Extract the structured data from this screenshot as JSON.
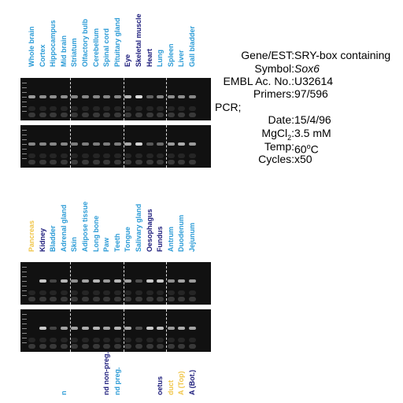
{
  "colors": {
    "cyan": "#2b9bd6",
    "navy": "#1a1a7a",
    "yellow": "#f0c64a",
    "gel": "#111111"
  },
  "panel1": {
    "lanes": [
      {
        "label": "Whole brain",
        "color": "cyan",
        "b1": 0.55,
        "b2": 0.45
      },
      {
        "label": "Cortex",
        "color": "cyan",
        "b1": 0.5,
        "b2": 0.45
      },
      {
        "label": "Hippocampus",
        "color": "cyan",
        "b1": 0.5,
        "b2": 0.45
      },
      {
        "label": "Mid brain",
        "color": "cyan",
        "b1": 0.5,
        "b2": 0.45
      },
      {
        "label": "Striatum",
        "color": "cyan",
        "b1": 0.45,
        "b2": 0.4
      },
      {
        "label": "Olfactory bulb",
        "color": "cyan",
        "b1": 0.45,
        "b2": 0.4
      },
      {
        "label": "Cerebellum",
        "color": "cyan",
        "b1": 0.45,
        "b2": 0.4
      },
      {
        "label": "Spinal cord",
        "color": "cyan",
        "b1": 0.45,
        "b2": 0.4
      },
      {
        "label": "Pituitary gland",
        "color": "cyan",
        "b1": 0.45,
        "b2": 0.4
      },
      {
        "label": "Eye",
        "color": "navy",
        "b1": 0.7,
        "b2": 0.65
      },
      {
        "label": "Skeletal muscle",
        "color": "navy",
        "b1": 0.9,
        "b2": 0.85
      },
      {
        "label": "Heart",
        "color": "navy",
        "b1": 0.25,
        "b2": 0.2
      },
      {
        "label": "Lung",
        "color": "cyan",
        "b1": 0.45,
        "b2": 0.3
      },
      {
        "label": "Spleen",
        "color": "cyan",
        "b1": 0.5,
        "b2": 0.55
      },
      {
        "label": "Liver",
        "color": "cyan",
        "b1": 0.5,
        "b2": 0.65
      },
      {
        "label": "Gall bladder",
        "color": "cyan",
        "b1": 0.45,
        "b2": 0.55
      }
    ]
  },
  "panel2": {
    "lanes": [
      {
        "label": "Pancreas",
        "color": "yellow",
        "b1": 0.0,
        "b2": 0.0
      },
      {
        "label": "Kidney",
        "color": "navy",
        "b1": 0.8,
        "b2": 0.8
      },
      {
        "label": "Bladder",
        "color": "cyan",
        "b1": 0.1,
        "b2": 0.1
      },
      {
        "label": "Adrenal gland",
        "color": "cyan",
        "b1": 0.7,
        "b2": 0.6
      },
      {
        "label": "Skin",
        "color": "cyan",
        "b1": 0.5,
        "b2": 0.6
      },
      {
        "label": "Adipose tissue",
        "color": "cyan",
        "b1": 0.6,
        "b2": 0.65
      },
      {
        "label": "Long bone",
        "color": "cyan",
        "b1": 0.7,
        "b2": 0.7
      },
      {
        "label": "Paw",
        "color": "cyan",
        "b1": 0.55,
        "b2": 0.6
      },
      {
        "label": "Teeth",
        "color": "cyan",
        "b1": 0.7,
        "b2": 0.7
      },
      {
        "label": "Tongue",
        "color": "cyan",
        "b1": 0.6,
        "b2": 0.65
      },
      {
        "label": "Salivary gland",
        "color": "cyan",
        "b1": 0.15,
        "b2": 0.15
      },
      {
        "label": "Oesophagus",
        "color": "navy",
        "b1": 0.8,
        "b2": 0.8
      },
      {
        "label": "Fundus",
        "color": "navy",
        "b1": 0.8,
        "b2": 0.75
      },
      {
        "label": "Antrum",
        "color": "cyan",
        "b1": 0.5,
        "b2": 0.55
      },
      {
        "label": "Duodenum",
        "color": "cyan",
        "b1": 0.6,
        "b2": 0.65
      },
      {
        "label": "Jejunum",
        "color": "cyan",
        "b1": 0.55,
        "b2": 0.6
      }
    ]
  },
  "panel3": {
    "lanes": [
      {
        "label": "",
        "color": "cyan"
      },
      {
        "label": "",
        "color": "cyan"
      },
      {
        "label": "",
        "color": "cyan"
      },
      {
        "label": "n",
        "color": "cyan"
      },
      {
        "label": "",
        "color": "cyan"
      },
      {
        "label": "",
        "color": "cyan"
      },
      {
        "label": "",
        "color": "cyan"
      },
      {
        "label": "nd non-preg.",
        "color": "navy"
      },
      {
        "label": "nd preg.",
        "color": "cyan"
      },
      {
        "label": "",
        "color": "cyan"
      },
      {
        "label": "",
        "color": "cyan"
      },
      {
        "label": "",
        "color": "cyan"
      },
      {
        "label": "oetus",
        "color": "navy"
      },
      {
        "label": "duct",
        "color": "yellow"
      },
      {
        "label": "A (Top)",
        "color": "yellow"
      },
      {
        "label": "A (Bot.)",
        "color": "navy"
      }
    ]
  },
  "info": {
    "gene_label": "Gene/EST:",
    "gene_value": "SRY-box containing",
    "symbol_label": "Symbol:",
    "symbol_value": "Sox6",
    "embl_label": "EMBL Ac. No.:",
    "embl_value": "U32614",
    "primers_label": "Primers:",
    "primers_value": "97/596",
    "pcr_label": "PCR;",
    "date_label": "Date:",
    "date_value": "15/4/96",
    "mgcl_label_main": "MgCl",
    "mgcl_label_sub": "2",
    "mgcl_label_tail": ":",
    "mgcl_value": "3.5 mM",
    "temp_label": "Temp:",
    "temp_value_main": "60",
    "temp_value_sup": "o",
    "temp_value_tail": "C",
    "cycles_label": "Cycles:",
    "cycles_value": "x50"
  }
}
